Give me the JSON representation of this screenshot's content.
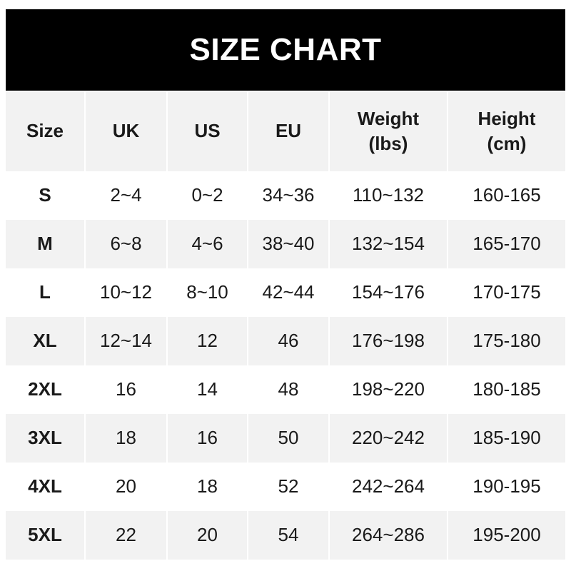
{
  "title": "SIZE CHART",
  "headers": [
    "Size",
    "UK",
    "US",
    "EU",
    "Weight\n(lbs)",
    "Height\n(cm)"
  ],
  "rows": [
    [
      "S",
      "2~4",
      "0~2",
      "34~36",
      "110~132",
      "160-165"
    ],
    [
      "M",
      "6~8",
      "4~6",
      "38~40",
      "132~154",
      "165-170"
    ],
    [
      "L",
      "10~12",
      "8~10",
      "42~44",
      "154~176",
      "170-175"
    ],
    [
      "XL",
      "12~14",
      "12",
      "46",
      "176~198",
      "175-180"
    ],
    [
      "2XL",
      "16",
      "14",
      "48",
      "198~220",
      "180-185"
    ],
    [
      "3XL",
      "18",
      "16",
      "50",
      "220~242",
      "185-190"
    ],
    [
      "4XL",
      "20",
      "18",
      "52",
      "242~264",
      "190-195"
    ],
    [
      "5XL",
      "22",
      "20",
      "54",
      "264~286",
      "195-200"
    ]
  ]
}
